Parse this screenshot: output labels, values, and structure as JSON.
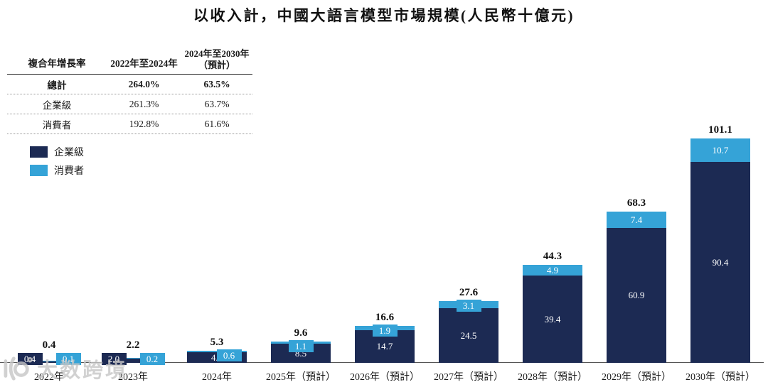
{
  "title": "以收入計，中國大語言模型市場規模(人民幣十億元)",
  "cagr_table": {
    "headers": [
      "複合年增長率",
      "2022年至2024年",
      "2024年至2030年\n（預計）"
    ],
    "rows": [
      {
        "label": "總計",
        "cagr_2022_2024": "264.0%",
        "cagr_2024_2030": "63.5%"
      },
      {
        "label": "企業級",
        "cagr_2022_2024": "261.3%",
        "cagr_2024_2030": "63.7%"
      },
      {
        "label": "消費者",
        "cagr_2022_2024": "192.8%",
        "cagr_2024_2030": "61.6%"
      }
    ]
  },
  "legend": [
    {
      "label": "企業級",
      "color": "#1C2A53"
    },
    {
      "label": "消費者",
      "color": "#35A3D7"
    }
  ],
  "watermark": "大数跨境",
  "chart_data": {
    "type": "bar",
    "stacked": true,
    "title": "以收入計，中國大語言模型市場規模(人民幣十億元)",
    "categories": [
      "2022年",
      "2023年",
      "2024年",
      "2025年（預計）",
      "2026年（預計）",
      "2027年（預計）",
      "2028年（預計）",
      "2029年（預計）",
      "2030年（預計）"
    ],
    "series": [
      {
        "name": "企業級",
        "color": "#1C2A53",
        "values": [
          0.4,
          2.0,
          4.7,
          8.5,
          14.7,
          24.5,
          39.4,
          60.9,
          90.4
        ]
      },
      {
        "name": "消費者",
        "color": "#35A3D7",
        "values": [
          0.1,
          0.2,
          0.6,
          1.1,
          1.9,
          3.1,
          4.9,
          7.4,
          10.7
        ]
      }
    ],
    "totals": [
      0.4,
      2.2,
      5.3,
      9.6,
      16.6,
      27.6,
      44.3,
      68.3,
      101.1
    ],
    "xlabel": "",
    "ylabel": "",
    "ylim": [
      0,
      101.1
    ],
    "grid": false,
    "legend_position": "top-left",
    "cons_label_x_offset": {
      "2024年": 17
    }
  }
}
